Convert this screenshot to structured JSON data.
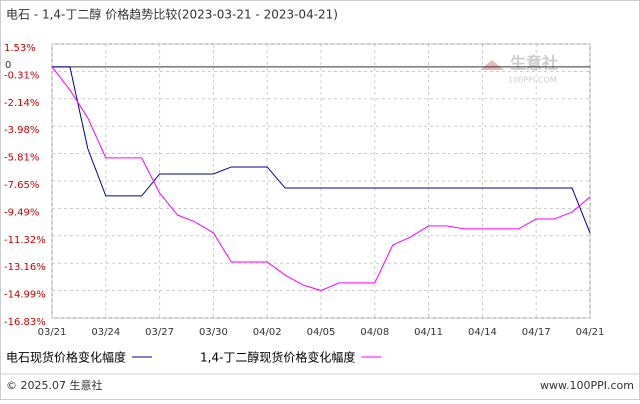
{
  "chart_data": {
    "type": "line",
    "title": "电石 - 1,4-丁二醇 价格趋势比较(2023-03-21 - 2023-04-21)",
    "categories": [
      "03/21",
      null,
      null,
      "03/24",
      null,
      null,
      "03/27",
      null,
      null,
      "03/30",
      null,
      null,
      "04/02",
      null,
      null,
      "04/05",
      null,
      null,
      "04/08",
      null,
      null,
      "04/11",
      null,
      null,
      "04/14",
      null,
      null,
      "04/17",
      null,
      null,
      "04/21"
    ],
    "series": [
      {
        "name": "电石现货价格变化幅度",
        "color": "#000099",
        "values": [
          0,
          0,
          -5.5,
          -8.65,
          -8.65,
          -8.65,
          -7.18,
          -7.18,
          -7.18,
          -7.18,
          -6.71,
          -6.71,
          -6.71,
          -8.12,
          -8.12,
          -8.12,
          -8.12,
          -8.12,
          -8.12,
          -8.12,
          -8.12,
          -8.12,
          -8.12,
          -8.12,
          -8.12,
          -8.12,
          -8.12,
          -8.12,
          -8.12,
          -8.12,
          -11.13
        ]
      },
      {
        "name": "1,4-丁二醇现货价格变化幅度",
        "color": "#ff00ff",
        "values": [
          0,
          -1.55,
          -3.43,
          -6.1,
          -6.1,
          -6.1,
          -8.45,
          -9.93,
          -10.4,
          -11.13,
          -13.08,
          -13.08,
          -13.08,
          -13.95,
          -14.62,
          -14.99,
          -14.48,
          -14.48,
          -14.48,
          -11.94,
          -11.4,
          -10.66,
          -10.66,
          -10.86,
          -10.86,
          -10.86,
          -10.86,
          -10.2,
          -10.2,
          -9.73,
          -8.72
        ]
      }
    ],
    "ylim": [
      -16.83,
      1.53
    ],
    "yticks": [
      {
        "value": 1.53,
        "label": "1.53%"
      },
      {
        "value": -0.31,
        "label": "-0.31%"
      },
      {
        "value": -2.14,
        "label": "-2.14%"
      },
      {
        "value": -3.98,
        "label": "-3.98%"
      },
      {
        "value": -5.81,
        "label": "-5.81%"
      },
      {
        "value": -7.65,
        "label": "-7.65%"
      },
      {
        "value": -9.49,
        "label": "-9.49%"
      },
      {
        "value": -11.32,
        "label": "-11.32%"
      },
      {
        "value": -13.16,
        "label": "-13.16%"
      },
      {
        "value": -14.99,
        "label": "-14.99%"
      },
      {
        "value": -16.83,
        "label": "-16.83%"
      }
    ],
    "zero_line": 0,
    "grid": true,
    "watermark": [
      "生意社",
      "100PPI.COM"
    ],
    "footer": [
      "© 2025.07 生意社",
      "www.100PPI.com"
    ]
  }
}
